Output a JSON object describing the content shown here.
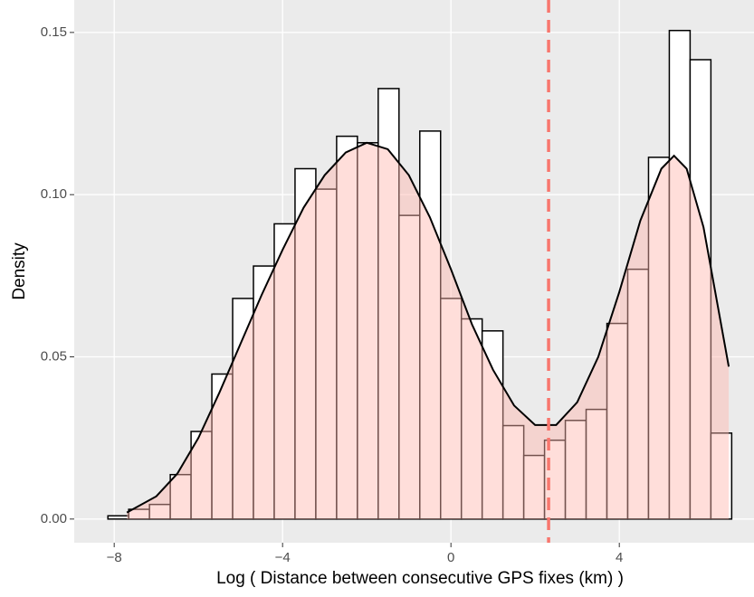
{
  "chart_data": {
    "type": "histogram",
    "xlabel": "Log ( Distance between consecutive GPS fixes (km) )",
    "ylabel": "Density",
    "bins": [
      -8.15,
      -7.656,
      -7.162,
      -6.668,
      -6.174,
      -5.68,
      -5.186,
      -4.692,
      -4.198,
      -3.704,
      -3.21,
      -2.716,
      -2.222,
      -1.728,
      -1.234,
      -0.74,
      -0.246,
      0.248,
      0.742,
      1.236,
      1.73,
      2.224,
      2.718,
      3.212,
      3.706,
      4.2,
      4.694,
      5.188,
      5.682,
      6.176,
      6.67
    ],
    "counts": [
      0.001,
      0.003,
      0.0045,
      0.0137,
      0.027,
      0.0447,
      0.068,
      0.078,
      0.091,
      0.108,
      0.1017,
      0.118,
      0.116,
      0.1327,
      0.0936,
      0.1196,
      0.068,
      0.0617,
      0.058,
      0.0288,
      0.0196,
      0.0243,
      0.0304,
      0.0338,
      0.0603,
      0.077,
      0.1115,
      0.1506,
      0.1416,
      0.0265
    ],
    "bar_fill": "#ffffff",
    "bar_edge": "#000000",
    "density": {
      "x": [
        -7.7,
        -7,
        -6.5,
        -6,
        -5.5,
        -5,
        -4.5,
        -4,
        -3.5,
        -3,
        -2.5,
        -2,
        -1.5,
        -1,
        -0.5,
        0,
        0.5,
        1,
        1.5,
        2,
        2.5,
        3,
        3.5,
        4,
        4.5,
        5,
        5.3,
        5.6,
        6,
        6.6
      ],
      "values": [
        0.002,
        0.007,
        0.014,
        0.025,
        0.039,
        0.054,
        0.069,
        0.083,
        0.096,
        0.106,
        0.113,
        0.116,
        0.114,
        0.106,
        0.093,
        0.077,
        0.06,
        0.046,
        0.035,
        0.029,
        0.029,
        0.036,
        0.05,
        0.07,
        0.092,
        0.108,
        0.112,
        0.108,
        0.09,
        0.047
      ],
      "color": "#000000",
      "fill": "#ffb6ad"
    },
    "vline": {
      "x": 2.32,
      "color": "#f8766d"
    },
    "xlim": [
      -8.95,
      7.2
    ],
    "ylim": [
      -0.0073,
      0.16
    ],
    "xticks": [
      {
        "value": -8,
        "label": "−8"
      },
      {
        "value": -4,
        "label": "−4"
      },
      0,
      4
    ],
    "yticks": [
      {
        "value": 0,
        "label": "0.00"
      },
      {
        "value": 0.05,
        "label": "0.05"
      },
      {
        "value": 0.1,
        "label": "0.10"
      },
      {
        "value": 0.15,
        "label": "0.15"
      }
    ],
    "grid": true
  }
}
